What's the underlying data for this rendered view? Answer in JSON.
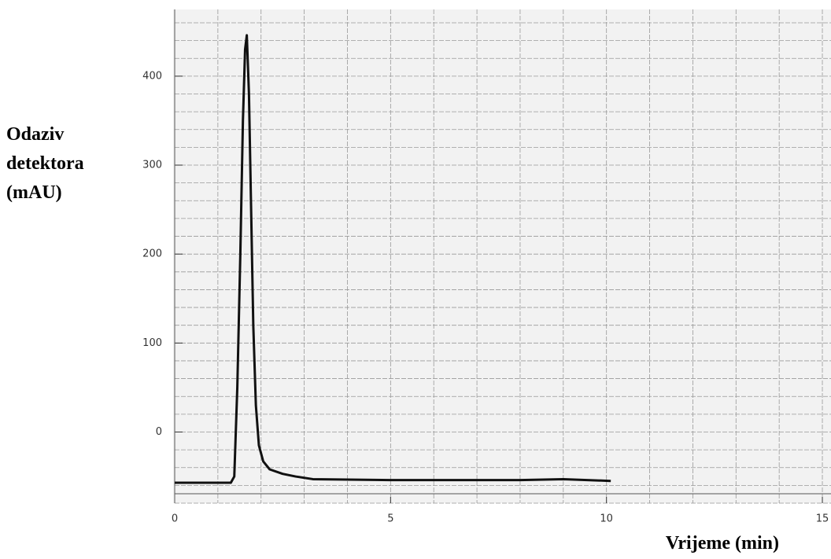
{
  "chart_data": {
    "type": "line",
    "ylabel": [
      "Odaziv",
      "detektora",
      "(mAU)"
    ],
    "xlabel": "Vrijeme (min)",
    "series": [
      {
        "color": "#111111",
        "x": [
          0,
          1.3,
          1.38,
          1.45,
          1.52,
          1.58,
          1.63,
          1.67,
          1.72,
          1.77,
          1.82,
          1.88,
          1.95,
          2.05,
          2.2,
          2.5,
          2.8,
          3.2,
          5,
          8,
          9,
          10.1
        ],
        "y": [
          -57,
          -57,
          -50,
          50,
          200,
          350,
          430,
          446,
          380,
          250,
          120,
          30,
          -15,
          -33,
          -42,
          -47,
          -50,
          -53,
          -54,
          -54,
          -53,
          -55
        ]
      }
    ],
    "xlim": [
      0,
      15.2
    ],
    "xticks": [
      0,
      5,
      10,
      15
    ],
    "ylim": [
      -80,
      475
    ],
    "yticks": [
      0,
      100,
      200,
      300,
      400
    ],
    "grid": true
  }
}
